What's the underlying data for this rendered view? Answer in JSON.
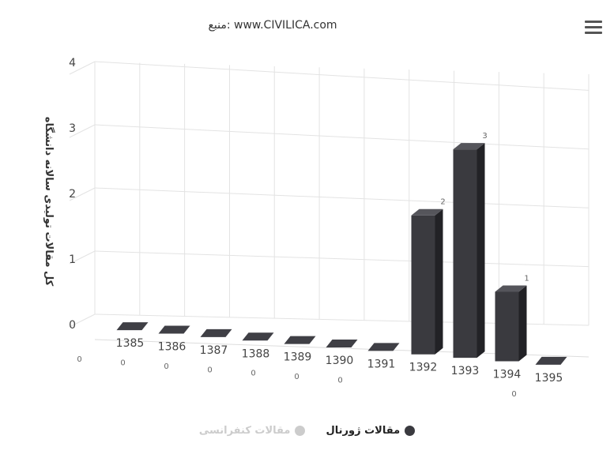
{
  "header": {
    "menu_icon": "hamburger-menu-icon"
  },
  "chart_data": {
    "type": "bar",
    "title": "منبع: www.CIVILICA.com",
    "ylabel": "کل مقالات تولیدی سالانه دانشگاه",
    "xlabel": "",
    "categories": [
      "1385",
      "1386",
      "1387",
      "1388",
      "1389",
      "1390",
      "1391",
      "1392",
      "1393",
      "1394",
      "1395"
    ],
    "yticks": [
      "0",
      "1",
      "2",
      "3",
      "4"
    ],
    "ylim": [
      0,
      4
    ],
    "grid": true,
    "three_d": true,
    "legend_position": "bottom",
    "series": [
      {
        "name": "مقالات ژورنال",
        "values": [
          0,
          0,
          0,
          0,
          0,
          0,
          0,
          2,
          3,
          1,
          0
        ],
        "color": "#3a3a3f",
        "visible": true
      },
      {
        "name": "مقالات کنفرانسی",
        "values": [
          0,
          0,
          0,
          0,
          0,
          0,
          0,
          0,
          0,
          0,
          0
        ],
        "color": "#cccccc",
        "visible": false
      }
    ],
    "data_labels": [
      "0",
      "0",
      "0",
      "0",
      "0",
      "0",
      "0",
      "2",
      "3",
      "1",
      "0"
    ]
  }
}
